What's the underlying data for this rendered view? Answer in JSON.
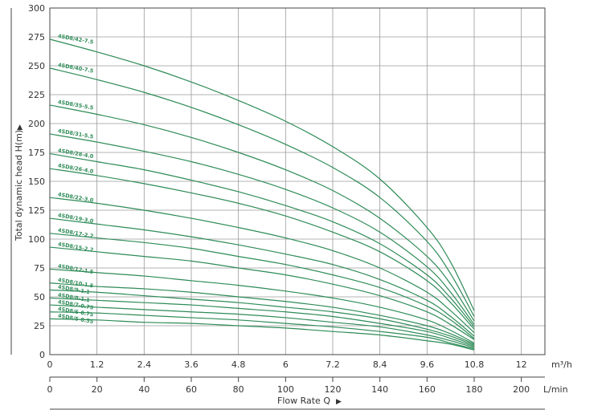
{
  "chart_data": {
    "type": "line",
    "xlabel": "Flow Rate Q",
    "ylabel": "Total dynamic head H(m)",
    "x_unit_primary": "m³/h",
    "x_unit_secondary": "L/min",
    "x_ticks_primary": [
      "0",
      "1.2",
      "2.4",
      "3.6",
      "4.8",
      "6",
      "7.2",
      "8.4",
      "9.6",
      "10.8",
      "12"
    ],
    "x_ticks_secondary": [
      "0",
      "20",
      "40",
      "60",
      "80",
      "100",
      "120",
      "140",
      "160",
      "180",
      "200"
    ],
    "y_ticks": [
      "0",
      "25",
      "50",
      "75",
      "100",
      "125",
      "150",
      "175",
      "200",
      "225",
      "250",
      "275",
      "300"
    ],
    "xlim": [
      0,
      12.6
    ],
    "ylim": [
      0,
      300
    ],
    "grid": true,
    "line_color": "#2e8b57",
    "series": [
      {
        "name": "4SD8/42-7.5",
        "x": [
          0,
          1.2,
          2.4,
          3.6,
          4.8,
          6,
          7.2,
          8.4,
          9.6,
          10.2,
          10.8
        ],
        "y": [
          273,
          262,
          250,
          236,
          220,
          202,
          180,
          152,
          110,
          80,
          38
        ]
      },
      {
        "name": "4SD8/40-7.5",
        "x": [
          0,
          1.2,
          2.4,
          3.6,
          4.8,
          6,
          7.2,
          8.4,
          9.6,
          10.2,
          10.8
        ],
        "y": [
          248,
          238,
          227,
          214,
          199,
          182,
          162,
          136,
          98,
          70,
          33
        ]
      },
      {
        "name": "4SD8/35-5.5",
        "x": [
          0,
          1.2,
          2.4,
          3.6,
          4.8,
          6,
          7.2,
          8.4,
          9.6,
          10.2,
          10.8
        ],
        "y": [
          216,
          208,
          199,
          188,
          175,
          160,
          142,
          118,
          85,
          61,
          29
        ]
      },
      {
        "name": "4SD8/31-5.5",
        "x": [
          0,
          1.2,
          2.4,
          3.6,
          4.8,
          6,
          7.2,
          8.4,
          9.6,
          10.2,
          10.8
        ],
        "y": [
          191,
          184,
          176,
          167,
          156,
          143,
          127,
          106,
          76,
          54,
          26
        ]
      },
      {
        "name": "4SD8/28-4.0",
        "x": [
          0,
          1.2,
          2.4,
          3.6,
          4.8,
          6,
          7.2,
          8.4,
          9.6,
          10.2,
          10.8
        ],
        "y": [
          174,
          167,
          160,
          151,
          141,
          129,
          115,
          96,
          69,
          49,
          24
        ]
      },
      {
        "name": "4SD8/26-4.0",
        "x": [
          0,
          1.2,
          2.4,
          3.6,
          4.8,
          6,
          7.2,
          8.4,
          9.6,
          10.2,
          10.8
        ],
        "y": [
          161,
          155,
          148,
          140,
          131,
          120,
          106,
          89,
          64,
          45,
          22
        ]
      },
      {
        "name": "4SD8/22-3.0",
        "x": [
          0,
          1.2,
          2.4,
          3.6,
          4.8,
          6,
          7.2,
          8.4,
          9.6,
          10.2,
          10.8
        ],
        "y": [
          136,
          131,
          125,
          118,
          110,
          101,
          90,
          75,
          54,
          38,
          19
        ]
      },
      {
        "name": "4SD8/19-3.0",
        "x": [
          0,
          1.2,
          2.4,
          3.6,
          4.8,
          6,
          7.2,
          8.4,
          9.6,
          10.2,
          10.8
        ],
        "y": [
          118,
          113,
          108,
          102,
          95,
          87,
          78,
          65,
          47,
          33,
          16
        ]
      },
      {
        "name": "4SD8/17-2.2",
        "x": [
          0,
          1.2,
          2.4,
          3.6,
          4.8,
          6,
          7.2,
          8.4,
          9.6,
          10.2,
          10.8
        ],
        "y": [
          105,
          101,
          97,
          92,
          85,
          78,
          69,
          58,
          42,
          30,
          14
        ]
      },
      {
        "name": "4SD8/15-2.2",
        "x": [
          0,
          1.2,
          2.4,
          3.6,
          4.8,
          6,
          7.2,
          8.4,
          9.6,
          10.2,
          10.8
        ],
        "y": [
          93,
          89,
          85,
          81,
          75,
          69,
          61,
          51,
          37,
          26,
          13
        ]
      },
      {
        "name": "4SD8/12-1.5",
        "x": [
          0,
          1.2,
          2.4,
          3.6,
          4.8,
          6,
          7.2,
          8.4,
          9.6,
          10.2,
          10.8
        ],
        "y": [
          74,
          71,
          68,
          64,
          60,
          55,
          49,
          41,
          30,
          21,
          10
        ]
      },
      {
        "name": "4SD8/10-1.5",
        "x": [
          0,
          1.2,
          2.4,
          3.6,
          4.8,
          6,
          7.2,
          8.4,
          9.6,
          10.2,
          10.8
        ],
        "y": [
          62,
          59,
          57,
          54,
          50,
          46,
          41,
          34,
          25,
          18,
          9
        ]
      },
      {
        "name": "4SD8/9-1.1",
        "x": [
          0,
          1.2,
          2.4,
          3.6,
          4.8,
          6,
          7.2,
          8.4,
          9.6,
          10.2,
          10.8
        ],
        "y": [
          56,
          54,
          51,
          48,
          45,
          41,
          37,
          31,
          22,
          16,
          8
        ]
      },
      {
        "name": "4SD8/8-1.1",
        "x": [
          0,
          1.2,
          2.4,
          3.6,
          4.8,
          6,
          7.2,
          8.4,
          9.6,
          10.2,
          10.8
        ],
        "y": [
          49,
          47,
          45,
          43,
          40,
          37,
          33,
          27,
          20,
          14,
          7
        ]
      },
      {
        "name": "4SD8/7-0.75",
        "x": [
          0,
          1.2,
          2.4,
          3.6,
          4.8,
          6,
          7.2,
          8.4,
          9.6,
          10.2,
          10.8
        ],
        "y": [
          43,
          41,
          39,
          37,
          35,
          32,
          28,
          24,
          17,
          12,
          6
        ]
      },
      {
        "name": "4SD8/6-0.75",
        "x": [
          0,
          1.2,
          2.4,
          3.6,
          4.8,
          6,
          7.2,
          8.4,
          9.6,
          10.2,
          10.8
        ],
        "y": [
          37,
          36,
          34,
          32,
          30,
          27,
          24,
          20,
          15,
          10,
          5
        ]
      },
      {
        "name": "4SD8/5-0.55",
        "x": [
          0,
          1.2,
          2.4,
          3.6,
          4.8,
          6,
          7.2,
          8.4,
          9.6,
          10.2,
          10.8
        ],
        "y": [
          31,
          30,
          28,
          27,
          25,
          23,
          20,
          17,
          12,
          9,
          4
        ]
      }
    ]
  }
}
